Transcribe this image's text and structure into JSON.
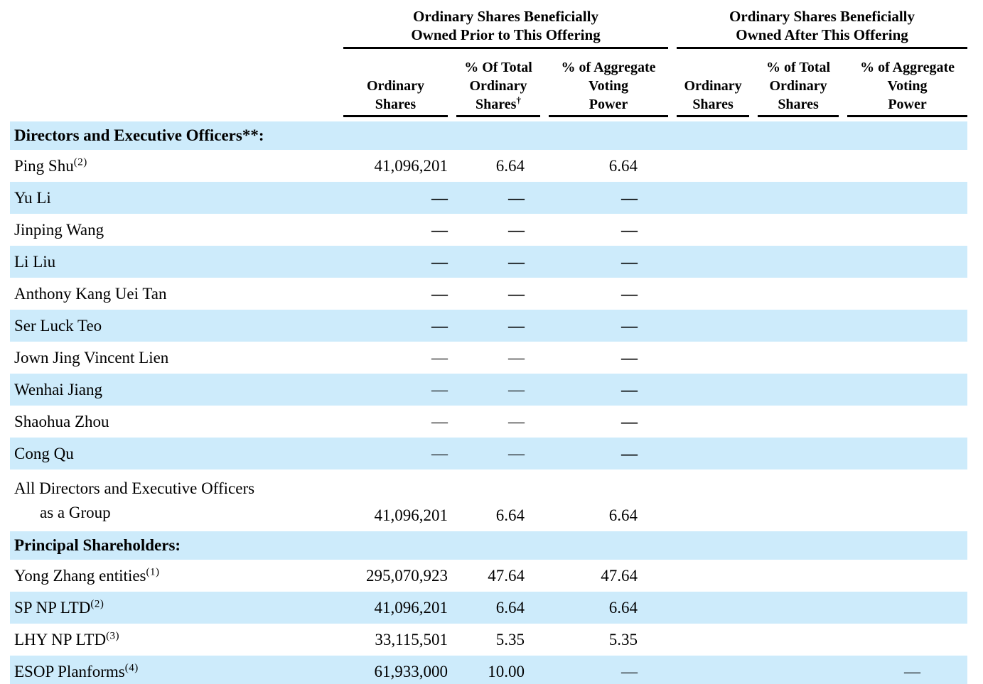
{
  "page": {
    "background_color": "#ffffff",
    "band_color": "#cdebfb",
    "text_color": "#000000"
  },
  "table": {
    "groups": [
      {
        "title_lines": [
          "Ordinary Shares Beneficially",
          "Owned Prior to This Offering"
        ]
      },
      {
        "title_lines": [
          "Ordinary Shares Beneficially",
          "Owned After This Offering"
        ]
      }
    ],
    "columns": [
      {
        "lines": [
          "Ordinary",
          "Shares"
        ],
        "sup": ""
      },
      {
        "lines": [
          "% Of Total",
          "Ordinary",
          "Shares"
        ],
        "sup": "†"
      },
      {
        "lines": [
          "% of Aggregate",
          "Voting",
          "Power"
        ],
        "sup": ""
      },
      {
        "lines": [
          "Ordinary",
          "Shares"
        ],
        "sup": ""
      },
      {
        "lines": [
          "% of Total",
          "Ordinary",
          "Shares"
        ],
        "sup": ""
      },
      {
        "lines": [
          "% of Aggregate",
          "Voting",
          "Power"
        ],
        "sup": ""
      }
    ],
    "rows": [
      {
        "type": "section",
        "label": "Directors and Executive Officers**:",
        "shaded": true
      },
      {
        "type": "data",
        "label": "Ping Shu",
        "sup": "(2)",
        "cells": [
          "41,096,201",
          "6.64",
          "6.64",
          "",
          "",
          ""
        ],
        "weights": [
          "n",
          "n",
          "n",
          "n",
          "n",
          "n"
        ],
        "shaded": false
      },
      {
        "type": "data",
        "label": "Yu Li",
        "sup": "",
        "cells": [
          "—",
          "—",
          "—",
          "",
          "",
          ""
        ],
        "weights": [
          "b",
          "b",
          "b",
          "n",
          "n",
          "n"
        ],
        "shaded": true
      },
      {
        "type": "data",
        "label": "Jinping Wang",
        "sup": "",
        "cells": [
          "—",
          "—",
          "—",
          "",
          "",
          ""
        ],
        "weights": [
          "b",
          "b",
          "b",
          "n",
          "n",
          "n"
        ],
        "shaded": false
      },
      {
        "type": "data",
        "label": "Li Liu",
        "sup": "",
        "cells": [
          "—",
          "—",
          "—",
          "",
          "",
          ""
        ],
        "weights": [
          "b",
          "b",
          "b",
          "n",
          "n",
          "n"
        ],
        "shaded": true
      },
      {
        "type": "data",
        "label": "Anthony Kang Uei Tan",
        "sup": "",
        "cells": [
          "—",
          "—",
          "—",
          "",
          "",
          ""
        ],
        "weights": [
          "b",
          "b",
          "b",
          "n",
          "n",
          "n"
        ],
        "shaded": false
      },
      {
        "type": "data",
        "label": "Ser Luck Teo",
        "sup": "",
        "cells": [
          "—",
          "—",
          "—",
          "",
          "",
          ""
        ],
        "weights": [
          "b",
          "b",
          "b",
          "n",
          "n",
          "n"
        ],
        "shaded": true
      },
      {
        "type": "data",
        "label": "Jown Jing Vincent Lien",
        "sup": "",
        "cells": [
          "—",
          "—",
          "—",
          "",
          "",
          ""
        ],
        "weights": [
          "n",
          "n",
          "b",
          "n",
          "n",
          "n"
        ],
        "shaded": false
      },
      {
        "type": "data",
        "label": "Wenhai Jiang",
        "sup": "",
        "cells": [
          "—",
          "—",
          "—",
          "",
          "",
          ""
        ],
        "weights": [
          "n",
          "n",
          "b",
          "n",
          "n",
          "n"
        ],
        "shaded": true
      },
      {
        "type": "data",
        "label": "Shaohua Zhou",
        "sup": "",
        "cells": [
          "—",
          "—",
          "—",
          "",
          "",
          ""
        ],
        "weights": [
          "n",
          "n",
          "b",
          "n",
          "n",
          "n"
        ],
        "shaded": false
      },
      {
        "type": "data",
        "label": "Cong Qu",
        "sup": "",
        "cells": [
          "—",
          "—",
          "—",
          "",
          "",
          ""
        ],
        "weights": [
          "n",
          "n",
          "b",
          "n",
          "n",
          "n"
        ],
        "shaded": true
      },
      {
        "type": "data",
        "label": "All Directors and Executive Officers",
        "label2": "as a Group",
        "sup": "",
        "cells": [
          "41,096,201",
          "6.64",
          "6.64",
          "",
          "",
          ""
        ],
        "weights": [
          "n",
          "n",
          "n",
          "n",
          "n",
          "n"
        ],
        "shaded": false
      },
      {
        "type": "section",
        "label": "Principal Shareholders:",
        "shaded": true
      },
      {
        "type": "data",
        "label": "Yong Zhang entities",
        "sup": "(1)",
        "cells": [
          "295,070,923",
          "47.64",
          "47.64",
          "",
          "",
          ""
        ],
        "weights": [
          "n",
          "n",
          "n",
          "n",
          "n",
          "n"
        ],
        "shaded": false
      },
      {
        "type": "data",
        "label": "SP NP LTD",
        "sup": "(2)",
        "cells": [
          "41,096,201",
          "6.64",
          "6.64",
          "",
          "",
          ""
        ],
        "weights": [
          "n",
          "n",
          "n",
          "n",
          "n",
          "n"
        ],
        "shaded": true
      },
      {
        "type": "data",
        "label": "LHY NP LTD",
        "sup": "(3)",
        "cells": [
          "33,115,501",
          "5.35",
          "5.35",
          "",
          "",
          ""
        ],
        "weights": [
          "n",
          "n",
          "n",
          "n",
          "n",
          "n"
        ],
        "shaded": false
      },
      {
        "type": "data",
        "label": "ESOP Planforms",
        "sup": "(4)",
        "cells": [
          "61,933,000",
          "10.00",
          "—",
          "",
          "",
          "—"
        ],
        "weights": [
          "n",
          "n",
          "n",
          "n",
          "n",
          "n"
        ],
        "shaded": true
      }
    ]
  }
}
